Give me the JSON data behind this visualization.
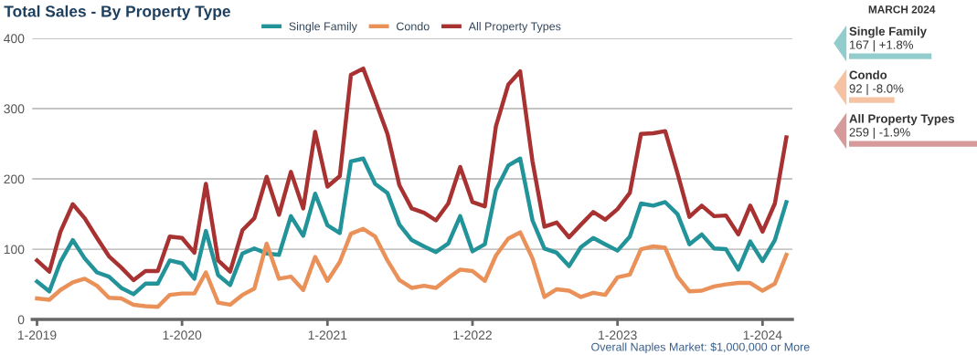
{
  "chart_data": [
    {
      "type": "line",
      "title": "Total Sales - By Property Type",
      "x": [
        "2019-01",
        "2019-02",
        "2019-03",
        "2019-04",
        "2019-05",
        "2019-06",
        "2019-07",
        "2019-08",
        "2019-09",
        "2019-10",
        "2019-11",
        "2019-12",
        "2020-01",
        "2020-02",
        "2020-03",
        "2020-04",
        "2020-05",
        "2020-06",
        "2020-07",
        "2020-08",
        "2020-09",
        "2020-10",
        "2020-11",
        "2020-12",
        "2021-01",
        "2021-02",
        "2021-03",
        "2021-04",
        "2021-05",
        "2021-06",
        "2021-07",
        "2021-08",
        "2021-09",
        "2021-10",
        "2021-11",
        "2021-12",
        "2022-01",
        "2022-02",
        "2022-03",
        "2022-04",
        "2022-05",
        "2022-06",
        "2022-07",
        "2022-08",
        "2022-09",
        "2022-10",
        "2022-11",
        "2022-12",
        "2023-01",
        "2023-02",
        "2023-03",
        "2023-04",
        "2023-05",
        "2023-06",
        "2023-07",
        "2023-08",
        "2023-09",
        "2023-10",
        "2023-11",
        "2023-12",
        "2024-01",
        "2024-02",
        "2024-03"
      ],
      "series": [
        {
          "name": "Single Family",
          "color": "#23939a",
          "values": [
            54,
            40,
            82,
            113,
            87,
            67,
            61,
            45,
            36,
            51,
            51,
            84,
            80,
            58,
            126,
            63,
            49,
            94,
            101,
            94,
            92,
            147,
            119,
            179,
            134,
            123,
            225,
            229,
            193,
            180,
            135,
            113,
            104,
            96,
            108,
            147,
            97,
            107,
            184,
            219,
            229,
            141,
            101,
            95,
            76,
            103,
            116,
            107,
            98,
            118,
            165,
            162,
            167,
            150,
            107,
            121,
            101,
            100,
            71,
            111,
            83,
            113,
            167
          ]
        },
        {
          "name": "Condo",
          "color": "#ea9159",
          "values": [
            30,
            28,
            42,
            53,
            58,
            48,
            31,
            30,
            21,
            19,
            18,
            35,
            37,
            37,
            67,
            24,
            21,
            35,
            44,
            108,
            58,
            61,
            42,
            89,
            55,
            82,
            122,
            129,
            118,
            84,
            56,
            45,
            48,
            45,
            59,
            71,
            69,
            55,
            91,
            115,
            124,
            87,
            32,
            43,
            41,
            32,
            38,
            35,
            60,
            64,
            100,
            104,
            102,
            61,
            40,
            41,
            47,
            50,
            52,
            52,
            41,
            51,
            92
          ]
        },
        {
          "name": "All Property Types",
          "color": "#a83232",
          "values": [
            84,
            68,
            125,
            164,
            144,
            116,
            90,
            74,
            56,
            69,
            69,
            118,
            116,
            95,
            193,
            84,
            68,
            127,
            144,
            203,
            149,
            210,
            158,
            267,
            189,
            204,
            348,
            357,
            312,
            264,
            191,
            158,
            152,
            141,
            165,
            217,
            167,
            161,
            275,
            334,
            353,
            225,
            132,
            138,
            117,
            135,
            153,
            142,
            157,
            180,
            264,
            265,
            268,
            208,
            146,
            162,
            147,
            148,
            121,
            162,
            125,
            165,
            259
          ]
        }
      ],
      "xlim": [
        "2018-12-20",
        "2024-03-16"
      ],
      "xticks": [
        {
          "value": "2019-01",
          "label": "1-2019"
        },
        {
          "value": "2020-01",
          "label": "1-2020"
        },
        {
          "value": "2021-01",
          "label": "1-2021"
        },
        {
          "value": "2022-01",
          "label": "1-2022"
        },
        {
          "value": "2023-01",
          "label": "1-2023"
        },
        {
          "value": "2024-01",
          "label": "1-2024"
        }
      ],
      "ylim": [
        0,
        400
      ],
      "yticks": [
        0,
        100,
        200,
        300,
        400
      ],
      "grid": "y",
      "legend": "top",
      "line_style": "solid",
      "marker": "none",
      "annotations": [
        "Overall Naples Market: $1,000,000 or More"
      ]
    },
    {
      "type": "bar",
      "orientation": "horizontal",
      "title": "MARCH 2024",
      "categories": [
        "Single Family",
        "Condo",
        "All Property Types"
      ],
      "values": [
        167,
        92,
        259
      ],
      "colors": [
        "#93cccc",
        "#f5c3a3",
        "#d69a9a"
      ],
      "value_labels": [
        "167 | +1.8%",
        "92 | -8.0%",
        "259 | -1.9%"
      ]
    }
  ]
}
